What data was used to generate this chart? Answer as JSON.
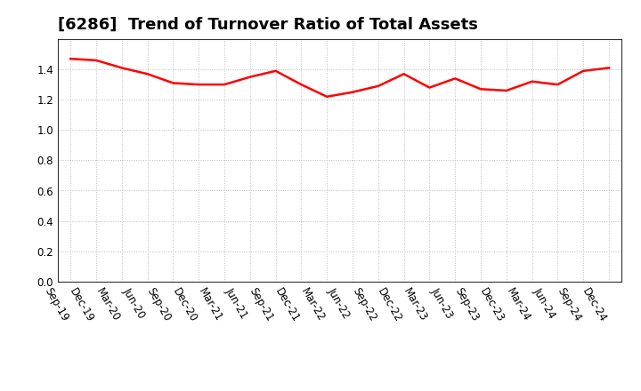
{
  "title": "[6286]  Trend of Turnover Ratio of Total Assets",
  "labels": [
    "Sep-19",
    "Dec-19",
    "Mar-20",
    "Jun-20",
    "Sep-20",
    "Dec-20",
    "Mar-21",
    "Jun-21",
    "Sep-21",
    "Dec-21",
    "Mar-22",
    "Jun-22",
    "Sep-22",
    "Dec-22",
    "Mar-23",
    "Jun-23",
    "Sep-23",
    "Dec-23",
    "Mar-24",
    "Jun-24",
    "Sep-24",
    "Dec-24"
  ],
  "values": [
    1.47,
    1.46,
    1.41,
    1.37,
    1.31,
    1.3,
    1.3,
    1.35,
    1.39,
    1.3,
    1.22,
    1.25,
    1.29,
    1.37,
    1.28,
    1.34,
    1.27,
    1.26,
    1.32,
    1.3,
    1.39,
    1.41
  ],
  "line_color": "#FF0000",
  "line_width": 1.8,
  "ylim": [
    0.0,
    1.6
  ],
  "yticks": [
    0.0,
    0.2,
    0.4,
    0.6,
    0.8,
    1.0,
    1.2,
    1.4
  ],
  "background_color": "#ffffff",
  "plot_bg_color": "#ffffff",
  "grid_color": "#bbbbbb",
  "title_fontsize": 13,
  "tick_fontsize": 8.5
}
